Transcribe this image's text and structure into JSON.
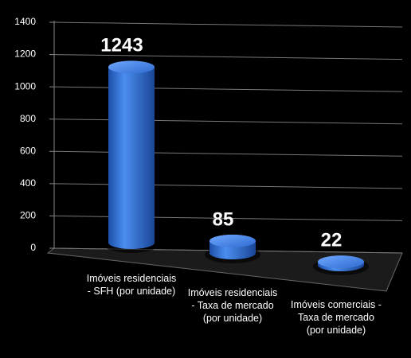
{
  "chart_data": {
    "type": "bar3d",
    "categories": [
      "Imóveis residenciais - SFH (por unidade)",
      "Imóveis residenciais - Taxa de mercado (por unidade)",
      "Imóveis comerciais - Taxa de mercado (por unidade)"
    ],
    "values": [
      1243,
      85,
      22
    ],
    "color": "#2f6fd6",
    "ylim": [
      0,
      1400
    ],
    "yticks": [
      0,
      200,
      400,
      600,
      800,
      1000,
      1200,
      1400
    ],
    "grid": true
  }
}
